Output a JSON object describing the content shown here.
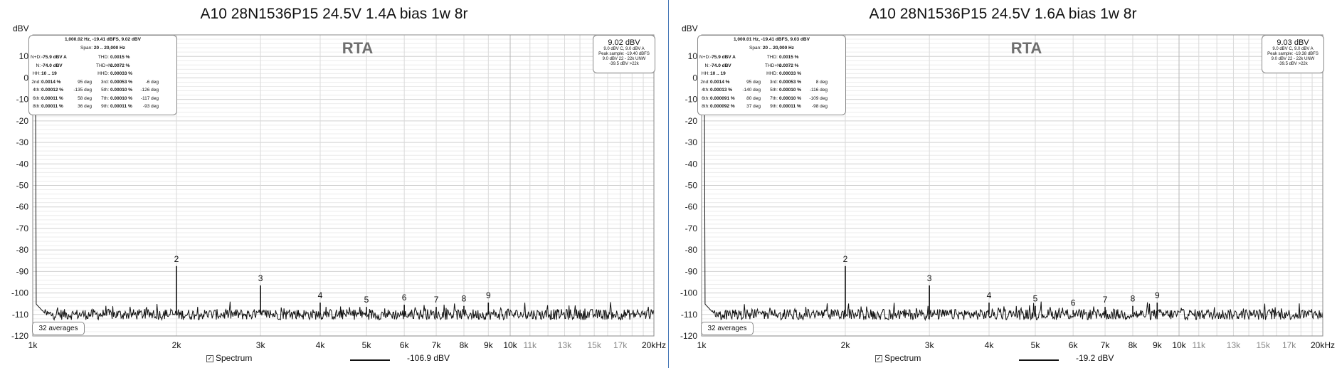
{
  "chart_data": [
    {
      "type": "line",
      "title": "A10 28N1536P15 24.5V 1.4A bias 1w 8r",
      "ylabel": "dBV",
      "xscale": "log",
      "xlim": [
        1000,
        20000
      ],
      "ylim": [
        -120,
        20
      ],
      "grid": true,
      "watermark": "RTA",
      "x_ticks": [
        {
          "v": 1000,
          "label": "1k",
          "major": true
        },
        {
          "v": 2000,
          "label": "2k",
          "major": true
        },
        {
          "v": 3000,
          "label": "3k",
          "major": true
        },
        {
          "v": 4000,
          "label": "4k",
          "major": true
        },
        {
          "v": 5000,
          "label": "5k",
          "major": true
        },
        {
          "v": 6000,
          "label": "6k",
          "major": true
        },
        {
          "v": 7000,
          "label": "7k",
          "major": true
        },
        {
          "v": 8000,
          "label": "8k",
          "major": true
        },
        {
          "v": 9000,
          "label": "9k",
          "major": true
        },
        {
          "v": 10000,
          "label": "10k",
          "major": true
        },
        {
          "v": 11000,
          "label": "11k",
          "major": false
        },
        {
          "v": 13000,
          "label": "13k",
          "major": false
        },
        {
          "v": 15000,
          "label": "15k",
          "major": false
        },
        {
          "v": 17000,
          "label": "17k",
          "major": false
        },
        {
          "v": 20000,
          "label": "20kHz",
          "major": true
        }
      ],
      "y_ticks": [
        {
          "v": 10,
          "label": "10"
        },
        {
          "v": 0,
          "label": "0"
        },
        {
          "v": -10,
          "label": "-10"
        },
        {
          "v": -20,
          "label": "-20"
        },
        {
          "v": -30,
          "label": "-30"
        },
        {
          "v": -40,
          "label": "-40"
        },
        {
          "v": -50,
          "label": "-50"
        },
        {
          "v": -60,
          "label": "-60"
        },
        {
          "v": -70,
          "label": "-70"
        },
        {
          "v": -80,
          "label": "-80"
        },
        {
          "v": -90,
          "label": "-90"
        },
        {
          "v": -100,
          "label": "-100"
        },
        {
          "v": -110,
          "label": "-110"
        },
        {
          "v": -120,
          "label": "-120"
        }
      ],
      "series": [
        {
          "name": "Spectrum",
          "noise_floor": -110,
          "fundamental": {
            "x": 1000,
            "y": 9.02
          }
        }
      ],
      "harmonics": [
        {
          "label": "2",
          "x": 2000,
          "y": -87.5
        },
        {
          "label": "3",
          "x": 3000,
          "y": -96.5
        },
        {
          "label": "4",
          "x": 4000,
          "y": -104.5
        },
        {
          "label": "5",
          "x": 5000,
          "y": -106.5
        },
        {
          "label": "6",
          "x": 6000,
          "y": -105.5
        },
        {
          "label": "7",
          "x": 7000,
          "y": -106.5
        },
        {
          "label": "8",
          "x": 8000,
          "y": -106
        },
        {
          "label": "9",
          "x": 9000,
          "y": -104.5
        }
      ],
      "infobox": {
        "header1": "1,000.02 Hz, -19.41 dBFS, 9.02 dBV",
        "header2_pre": "Span: ",
        "header2_val": "20 .. 20,000 Hz",
        "rows": [
          [
            "N+D:",
            "-75.9 dBV A",
            "",
            "THD:",
            "0.0015 %",
            ""
          ],
          [
            "N:",
            "-74.0 dBV",
            "",
            "THD+N:",
            "0.0072 %",
            ""
          ],
          [
            "HH:",
            "10 .. 19",
            "",
            "HHD:",
            "0.00033 %",
            ""
          ],
          [
            "2nd:",
            "0.0014 %",
            "95 deg",
            "3rd:",
            "0.00053 %",
            "-6 deg"
          ],
          [
            "4th:",
            "0.00012 %",
            "-135 deg",
            "5th:",
            "0.00010 %",
            "-126 deg"
          ],
          [
            "6th:",
            "0.00011 %",
            "58 deg",
            "7th:",
            "0.00010 %",
            "-117 deg"
          ],
          [
            "8th:",
            "0.00011 %",
            "36 deg",
            "9th:",
            "0.00011 %",
            "-93 deg"
          ]
        ]
      },
      "level": {
        "value": "9.02 dBV",
        "lines": [
          "9.0 dBV C, 9.0 dBV A",
          "Peak sample: -19.40 dBFS",
          "9.0 dBV 22 - 22k UNW",
          "-39.5 dBV >22k"
        ]
      },
      "averages": "32 averages",
      "legend": {
        "label": "Spectrum",
        "value": "-106.9 dBV"
      }
    },
    {
      "type": "line",
      "title": "A10 28N1536P15 24.5V 1.6A bias 1w 8r",
      "ylabel": "dBV",
      "xscale": "log",
      "xlim": [
        1000,
        20000
      ],
      "ylim": [
        -120,
        20
      ],
      "grid": true,
      "watermark": "RTA",
      "x_ticks": [
        {
          "v": 1000,
          "label": "1k",
          "major": true
        },
        {
          "v": 2000,
          "label": "2k",
          "major": true
        },
        {
          "v": 3000,
          "label": "3k",
          "major": true
        },
        {
          "v": 4000,
          "label": "4k",
          "major": true
        },
        {
          "v": 5000,
          "label": "5k",
          "major": true
        },
        {
          "v": 6000,
          "label": "6k",
          "major": true
        },
        {
          "v": 7000,
          "label": "7k",
          "major": true
        },
        {
          "v": 8000,
          "label": "8k",
          "major": true
        },
        {
          "v": 9000,
          "label": "9k",
          "major": true
        },
        {
          "v": 10000,
          "label": "10k",
          "major": true
        },
        {
          "v": 11000,
          "label": "11k",
          "major": false
        },
        {
          "v": 13000,
          "label": "13k",
          "major": false
        },
        {
          "v": 15000,
          "label": "15k",
          "major": false
        },
        {
          "v": 17000,
          "label": "17k",
          "major": false
        },
        {
          "v": 20000,
          "label": "20kHz",
          "major": true
        }
      ],
      "y_ticks": [
        {
          "v": 10,
          "label": "10"
        },
        {
          "v": 0,
          "label": "0"
        },
        {
          "v": -10,
          "label": "-10"
        },
        {
          "v": -20,
          "label": "-20"
        },
        {
          "v": -30,
          "label": "-30"
        },
        {
          "v": -40,
          "label": "-40"
        },
        {
          "v": -50,
          "label": "-50"
        },
        {
          "v": -60,
          "label": "-60"
        },
        {
          "v": -70,
          "label": "-70"
        },
        {
          "v": -80,
          "label": "-80"
        },
        {
          "v": -90,
          "label": "-90"
        },
        {
          "v": -100,
          "label": "-100"
        },
        {
          "v": -110,
          "label": "-110"
        },
        {
          "v": -120,
          "label": "-120"
        }
      ],
      "series": [
        {
          "name": "Spectrum",
          "noise_floor": -110,
          "fundamental": {
            "x": 1000,
            "y": 9.03
          }
        }
      ],
      "harmonics": [
        {
          "label": "2",
          "x": 2000,
          "y": -87.5
        },
        {
          "label": "3",
          "x": 3000,
          "y": -96.5
        },
        {
          "label": "4",
          "x": 4000,
          "y": -104.5
        },
        {
          "label": "5",
          "x": 5000,
          "y": -106
        },
        {
          "label": "6",
          "x": 6000,
          "y": -108
        },
        {
          "label": "7",
          "x": 7000,
          "y": -106.5
        },
        {
          "label": "8",
          "x": 8000,
          "y": -106
        },
        {
          "label": "9",
          "x": 9000,
          "y": -104.5
        }
      ],
      "infobox": {
        "header1": "1,000.01 Hz, -19.41 dBFS, 9.03 dBV",
        "header2_pre": "Span: ",
        "header2_val": "20 .. 20,000 Hz",
        "rows": [
          [
            "N+D:",
            "-75.9 dBV A",
            "",
            "THD:",
            "0.0015 %",
            ""
          ],
          [
            "N:",
            "-74.0 dBV",
            "",
            "THD+N:",
            "0.0072 %",
            ""
          ],
          [
            "HH:",
            "10 .. 19",
            "",
            "HHD:",
            "0.00033 %",
            ""
          ],
          [
            "2nd:",
            "0.0014 %",
            "95 deg",
            "3rd:",
            "0.00053 %",
            "8 deg"
          ],
          [
            "4th:",
            "0.00013 %",
            "-140 deg",
            "5th:",
            "0.00010 %",
            "-116 deg"
          ],
          [
            "6th:",
            "0.000091 %",
            "80 deg",
            "7th:",
            "0.00010 %",
            "-109 deg"
          ],
          [
            "8th:",
            "0.000092 %",
            "37 deg",
            "9th:",
            "0.00011 %",
            "-98 deg"
          ]
        ]
      },
      "level": {
        "value": "9.03 dBV",
        "lines": [
          "9.0 dBV C, 9.0 dBV A",
          "Peak sample: -19.38 dBFS",
          "9.0 dBV 22 - 22k UNW",
          "-39.5 dBV >22k"
        ]
      },
      "averages": "32 averages",
      "legend": {
        "label": "Spectrum",
        "value": "-19.2 dBV"
      }
    }
  ]
}
